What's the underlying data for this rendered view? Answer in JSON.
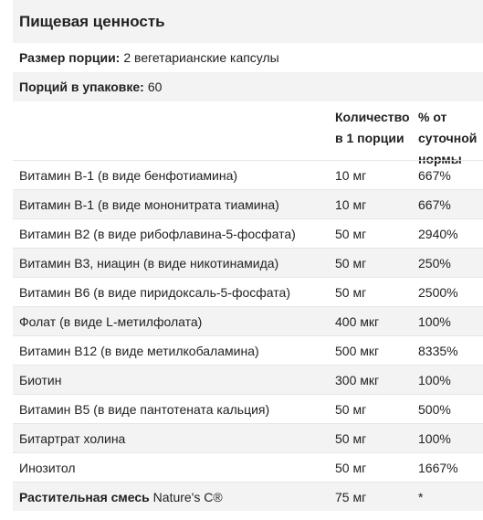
{
  "title": "Пищевая ценность",
  "serving_size": {
    "label": "Размер порции:",
    "value": "2 вегетарианские капсулы"
  },
  "servings_per_container": {
    "label": "Порций в упаковке:",
    "value": "60"
  },
  "columns": {
    "amount": "Количество в 1 порции",
    "daily_value": "% от суточной нормы"
  },
  "rows": [
    {
      "name": "Витамин B-1 (в виде бенфотиамина)",
      "amount": "10 мг",
      "dv": "667%"
    },
    {
      "name": "Витамин B-1 (в виде мононитрата тиамина)",
      "amount": "10 мг",
      "dv": "667%"
    },
    {
      "name": "Витамин B2 (в виде рибофлавина-5-фосфата)",
      "amount": "50 мг",
      "dv": "2940%"
    },
    {
      "name": "Витамин B3, ниацин (в виде никотинамида)",
      "amount": "50 мг",
      "dv": "250%"
    },
    {
      "name": "Витамин B6 (в виде пиридоксаль-5-фосфата)",
      "amount": "50 мг",
      "dv": "2500%"
    },
    {
      "name": "Фолат (в виде L-метилфолата)",
      "amount": "400 мкг",
      "dv": "100%"
    },
    {
      "name": "Витамин B12 (в виде метилкобаламина)",
      "amount": "500 мкг",
      "dv": "8335%"
    },
    {
      "name": "Биотин",
      "amount": "300 мкг",
      "dv": "100%"
    },
    {
      "name": "Витамин B5 (в виде пантотената кальция)",
      "amount": "50 мг",
      "dv": "500%"
    },
    {
      "name": "Битартрат холина",
      "amount": "50 мг",
      "dv": "100%"
    },
    {
      "name": "Инозитол",
      "amount": "50 мг",
      "dv": "1667%"
    }
  ],
  "blend_row": {
    "name_bold": "Растительная смесь",
    "name_plain": "Nature's C®",
    "amount": "75 мг",
    "dv": "*"
  }
}
